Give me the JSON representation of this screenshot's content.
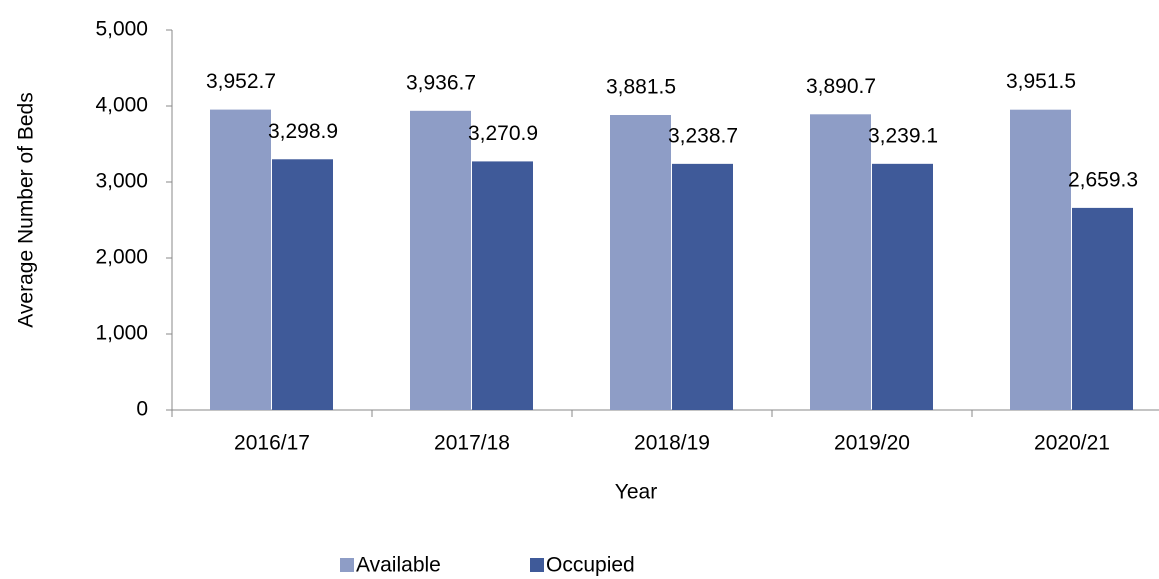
{
  "chart_data": {
    "type": "bar",
    "x_label": "Year",
    "y_label": "Average Number of Beds",
    "categories": [
      "2016/17",
      "2017/18",
      "2018/19",
      "2019/20",
      "2020/21"
    ],
    "series": [
      {
        "name": "Available",
        "color": "#8e9dc6",
        "values": [
          3952.7,
          3936.7,
          3881.5,
          3890.7,
          3951.5
        ],
        "value_labels": [
          "3,952.7",
          "3,936.7",
          "3,881.5",
          "3,890.7",
          "3,951.5"
        ]
      },
      {
        "name": "Occupied",
        "color": "#3f5a99",
        "values": [
          3298.9,
          3270.9,
          3238.7,
          3239.1,
          2659.3
        ],
        "value_labels": [
          "3,298.9",
          "3,270.9",
          "3,238.7",
          "3,239.1",
          "2,659.3"
        ]
      }
    ],
    "ylim": [
      0,
      5000
    ],
    "yticks": [
      0,
      {
        "value": 1000,
        "label": "1,000"
      },
      {
        "value": 2000,
        "label": "2,000"
      },
      {
        "value": 3000,
        "label": "3,000"
      },
      {
        "value": 4000,
        "label": "4,000"
      },
      {
        "value": 5000,
        "label": "5,000"
      }
    ],
    "legend": "bottom"
  }
}
